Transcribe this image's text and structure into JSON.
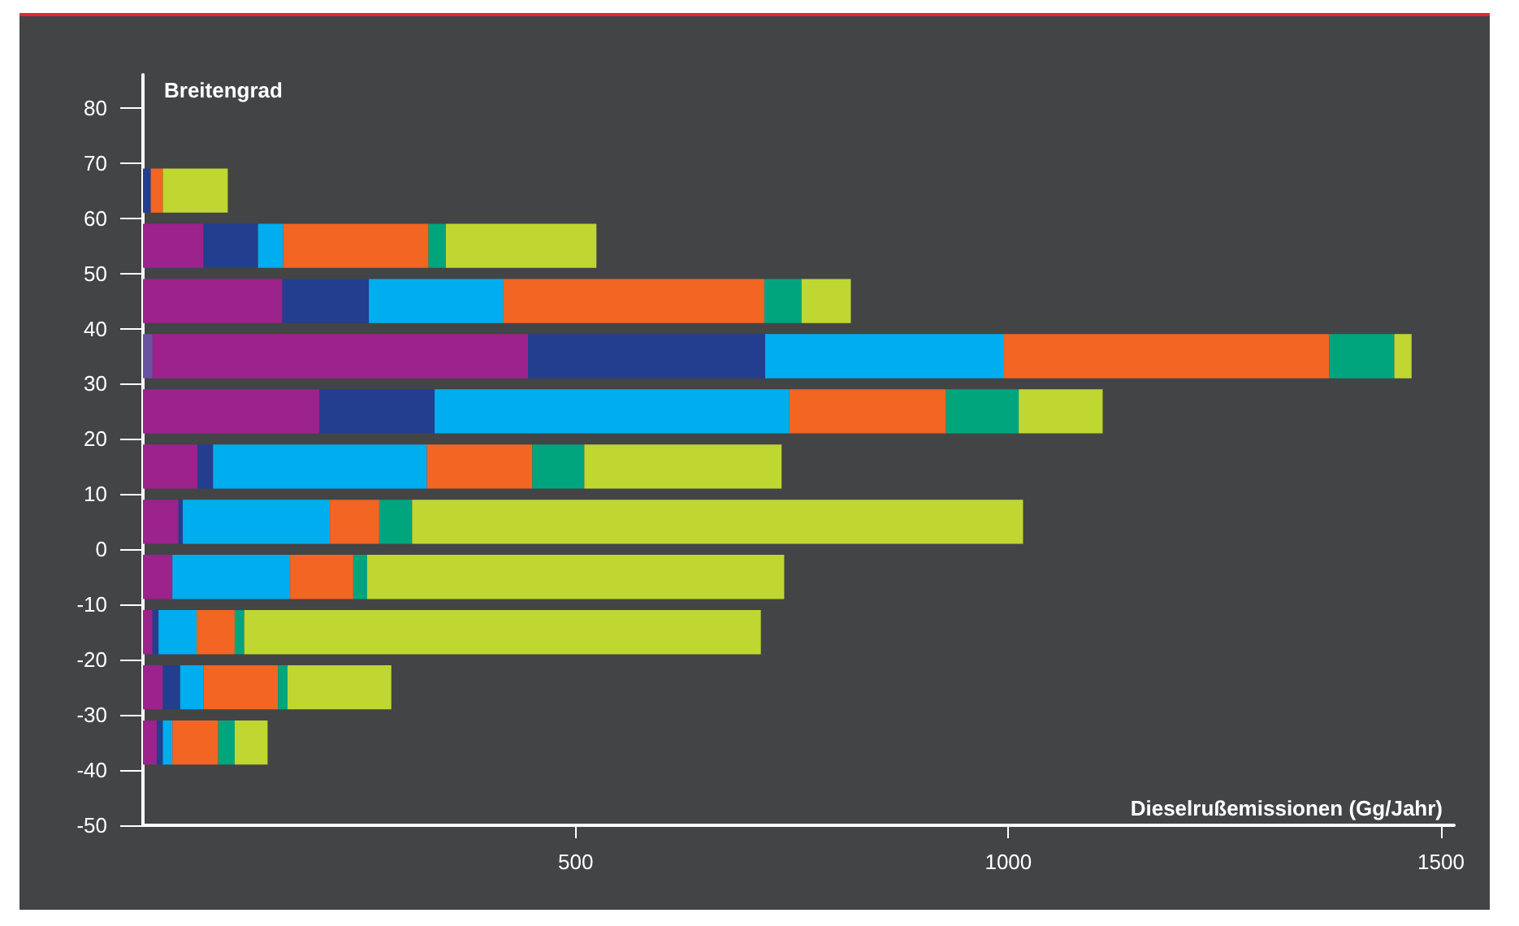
{
  "chart_data": {
    "type": "bar",
    "orientation": "horizontal",
    "stacked": true,
    "x": [
      65,
      55,
      45,
      35,
      25,
      15,
      5,
      -5,
      -15,
      -25,
      -35
    ],
    "series": [
      {
        "color": "#6a52a3",
        "values": [
          null,
          null,
          null,
          11,
          null,
          null,
          null,
          null,
          null,
          null,
          null
        ]
      },
      {
        "color": "#9c228c",
        "values": [
          null,
          70,
          161,
          434,
          204,
          63,
          41,
          34,
          11,
          23,
          16
        ]
      },
      {
        "color": "#233e8e",
        "values": [
          9,
          63,
          100,
          274,
          133,
          18,
          5,
          null,
          7,
          20,
          7
        ]
      },
      {
        "color": "#00adef",
        "values": [
          null,
          29,
          155,
          276,
          410,
          247,
          170,
          136,
          44,
          27,
          11
        ]
      },
      {
        "color": "#f26522",
        "values": [
          14,
          168,
          302,
          376,
          181,
          122,
          57,
          73,
          44,
          86,
          53
        ]
      },
      {
        "color": "#00a57e",
        "values": [
          null,
          20,
          43,
          75,
          84,
          60,
          38,
          16,
          11,
          11,
          19
        ]
      },
      {
        "color": "#bfd730",
        "values": [
          75,
          174,
          57,
          20,
          97,
          228,
          706,
          482,
          597,
          120,
          38
        ]
      }
    ],
    "xlabel": "Dieselrußemissionen (Gg/Jahr)",
    "ylabel": "Breitengrad",
    "xlim": [
      0,
      1515
    ],
    "xticks": [
      500,
      1000,
      1500
    ],
    "ylim": [
      -50,
      86
    ],
    "yticks": [
      -50,
      -40,
      -30,
      -20,
      -10,
      0,
      10,
      20,
      30,
      40,
      50,
      60,
      70,
      80
    ],
    "grid": false
  }
}
